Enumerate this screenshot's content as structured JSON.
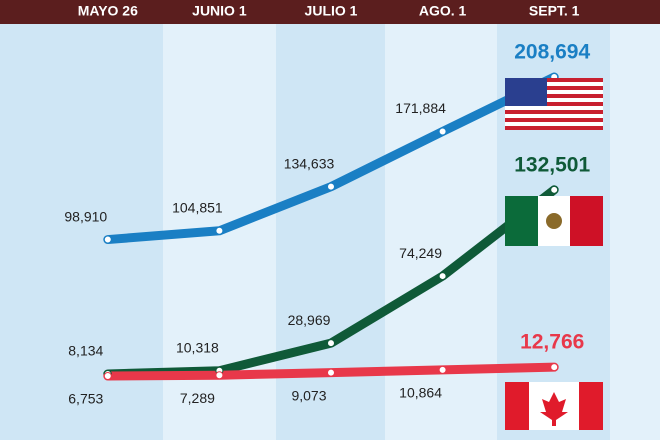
{
  "chart_data": {
    "type": "line",
    "categories": [
      "MAYO 26",
      "JUNIO 1",
      "JULIO 1",
      "AGO. 1",
      "SEPT. 1"
    ],
    "series": [
      {
        "name": "Estados Unidos",
        "color": "#1a7fc4",
        "values": [
          98910,
          104851,
          134633,
          171884,
          208694
        ],
        "value_labels": [
          "98,910",
          "104,851",
          "134,633",
          "171,884",
          "208,694"
        ]
      },
      {
        "name": "México",
        "color": "#0f5a38",
        "values": [
          8134,
          10318,
          28969,
          74249,
          132501
        ],
        "value_labels": [
          "8,134",
          "10,318",
          "28,969",
          "74,249",
          "132,501"
        ]
      },
      {
        "name": "Canadá",
        "color": "#e8384a",
        "values": [
          6753,
          7289,
          9073,
          10864,
          12766
        ],
        "value_labels": [
          "6,753",
          "7,289",
          "9,073",
          "10,864",
          "12,766"
        ]
      }
    ]
  }
}
